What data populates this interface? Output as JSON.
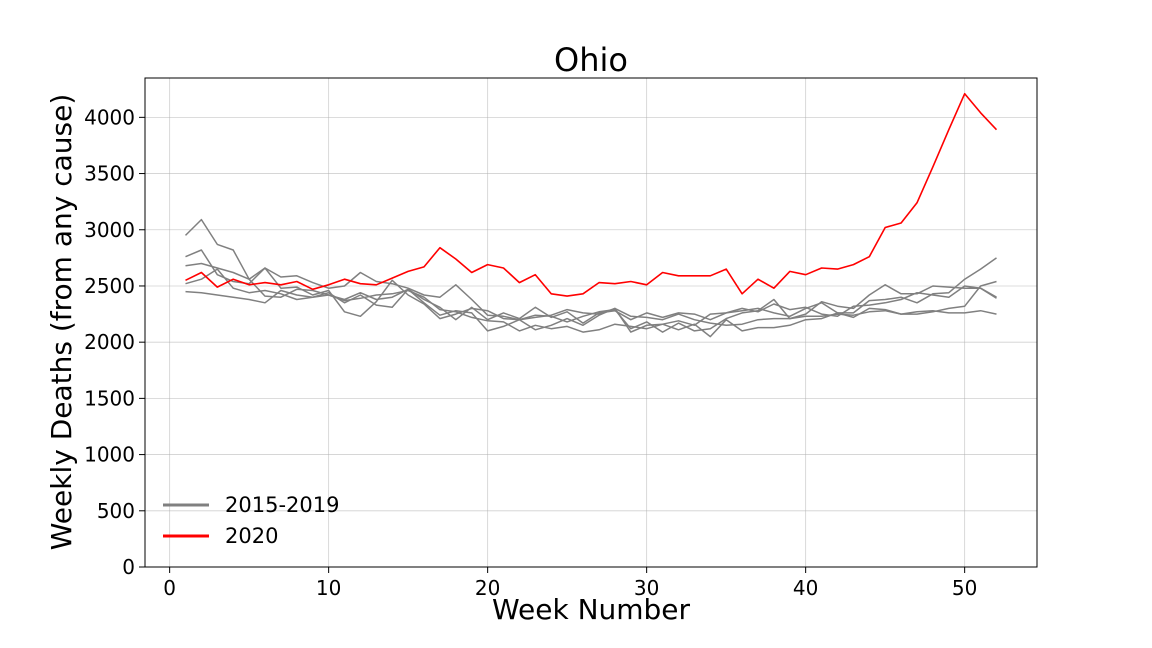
{
  "chart_data": {
    "type": "line",
    "title": "Ohio",
    "xlabel": "Week Number",
    "ylabel": "Weekly Deaths (from any cause)",
    "xlim": [
      -1.55,
      54.55
    ],
    "ylim": [
      0,
      4350
    ],
    "xticks": [
      0,
      10,
      20,
      30,
      40,
      50
    ],
    "yticks": [
      0,
      500,
      1000,
      1500,
      2000,
      2500,
      3000,
      3500,
      4000
    ],
    "grid": true,
    "legend": {
      "placement": "bottom-left",
      "entries": [
        {
          "label": "2015-2019",
          "color": "#808080"
        },
        {
          "label": "2020",
          "color": "#ff0000"
        }
      ]
    },
    "series": [
      {
        "color": "#808080",
        "values": [
          2950,
          3090,
          2870,
          2820,
          2560,
          2660,
          2580,
          2590,
          2530,
          2480,
          2500,
          2620,
          2540,
          2520,
          2480,
          2420,
          2400,
          2510,
          2380,
          2240,
          2230,
          2200,
          2240,
          2230,
          2180,
          2230,
          2270,
          2290,
          2120,
          2180,
          2090,
          2170,
          2100,
          2120,
          2210,
          2260,
          2280,
          2380,
          2210,
          2250,
          2360,
          2320,
          2300,
          2420,
          2510,
          2430,
          2430,
          2500,
          2490,
          2480,
          2480,
          2400
        ]
      },
      {
        "color": "#808080",
        "values": [
          2760,
          2820,
          2600,
          2540,
          2520,
          2660,
          2480,
          2490,
          2420,
          2460,
          2270,
          2230,
          2360,
          2550,
          2420,
          2340,
          2210,
          2250,
          2300,
          2280,
          2210,
          2200,
          2220,
          2240,
          2290,
          2260,
          2250,
          2300,
          2230,
          2220,
          2200,
          2250,
          2200,
          2170,
          2150,
          2160,
          2200,
          2210,
          2210,
          2230,
          2230,
          2250,
          2240,
          2270,
          2280,
          2250,
          2250,
          2270,
          2300,
          2320,
          2500,
          2540
        ]
      },
      {
        "color": "#808080",
        "values": [
          2680,
          2700,
          2660,
          2620,
          2560,
          2410,
          2400,
          2470,
          2460,
          2420,
          2380,
          2440,
          2380,
          2400,
          2470,
          2380,
          2310,
          2200,
          2310,
          2200,
          2260,
          2210,
          2310,
          2220,
          2270,
          2170,
          2260,
          2280,
          2200,
          2260,
          2220,
          2260,
          2250,
          2200,
          2260,
          2300,
          2270,
          2340,
          2290,
          2310,
          2250,
          2230,
          2320,
          2330,
          2350,
          2380,
          2440,
          2420,
          2400,
          2500,
          2480,
          2390
        ]
      },
      {
        "color": "#808080",
        "values": [
          2520,
          2560,
          2650,
          2480,
          2440,
          2460,
          2430,
          2380,
          2400,
          2440,
          2350,
          2420,
          2330,
          2310,
          2470,
          2350,
          2240,
          2280,
          2260,
          2100,
          2140,
          2200,
          2110,
          2150,
          2210,
          2150,
          2240,
          2300,
          2090,
          2150,
          2160,
          2190,
          2150,
          2250,
          2260,
          2280,
          2300,
          2260,
          2230,
          2300,
          2350,
          2260,
          2260,
          2370,
          2380,
          2400,
          2350,
          2430,
          2440,
          2560,
          2650,
          2750
        ]
      },
      {
        "color": "#808080",
        "values": [
          2450,
          2440,
          2420,
          2400,
          2380,
          2350,
          2460,
          2420,
          2400,
          2420,
          2370,
          2390,
          2420,
          2430,
          2460,
          2400,
          2290,
          2270,
          2220,
          2190,
          2180,
          2100,
          2150,
          2120,
          2140,
          2090,
          2110,
          2160,
          2140,
          2120,
          2160,
          2110,
          2160,
          2050,
          2200,
          2100,
          2130,
          2130,
          2150,
          2200,
          2210,
          2260,
          2220,
          2300,
          2290,
          2250,
          2270,
          2280,
          2260,
          2260,
          2280,
          2250
        ]
      },
      {
        "color": "#ff0000",
        "values": [
          2550,
          2620,
          2490,
          2560,
          2510,
          2530,
          2510,
          2540,
          2470,
          2510,
          2560,
          2520,
          2510,
          2570,
          2630,
          2670,
          2840,
          2740,
          2620,
          2690,
          2660,
          2530,
          2600,
          2430,
          2410,
          2430,
          2530,
          2520,
          2540,
          2510,
          2620,
          2590,
          2590,
          2590,
          2650,
          2430,
          2560,
          2480,
          2630,
          2600,
          2660,
          2650,
          2690,
          2760,
          3020,
          3060,
          3240,
          3560,
          3890,
          4210,
          4040,
          3890
        ]
      }
    ]
  }
}
